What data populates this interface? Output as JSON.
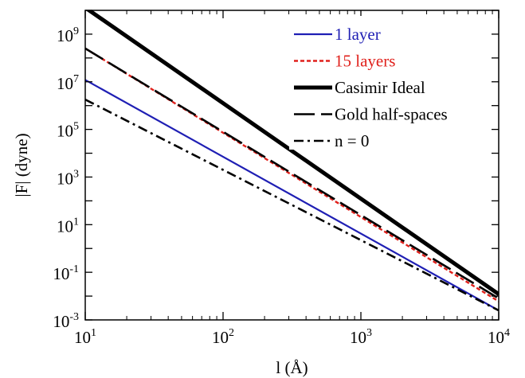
{
  "chart_data": {
    "type": "line",
    "x_scale": "log",
    "y_scale": "log",
    "xlim": [
      10,
      10000
    ],
    "ylim": [
      0.001,
      10000000000
    ],
    "xlabel": "l (Å)",
    "ylabel": "|F| (dyne)",
    "x_ticks": [
      {
        "base": "10",
        "exp": "1",
        "value": 10
      },
      {
        "base": "10",
        "exp": "2",
        "value": 100
      },
      {
        "base": "10",
        "exp": "3",
        "value": 1000
      },
      {
        "base": "10",
        "exp": "4",
        "value": 10000
      }
    ],
    "y_ticks": [
      {
        "base": "10",
        "exp": "9",
        "value": 1000000000.0
      },
      {
        "base": "10",
        "exp": "7",
        "value": 10000000.0
      },
      {
        "base": "10",
        "exp": "5",
        "value": 100000.0
      },
      {
        "base": "10",
        "exp": "3",
        "value": 1000.0
      },
      {
        "base": "10",
        "exp": "1",
        "value": 10.0
      },
      {
        "base": "10",
        "exp": "-1",
        "value": 0.1
      },
      {
        "base": "10",
        "exp": "-3",
        "value": 0.001
      }
    ],
    "legend_position": "top-right",
    "series": [
      {
        "name": "1 layer",
        "color": "#1f1fb4",
        "dash": "solid",
        "x": [
          10,
          10000
        ],
        "y": [
          12000000.0,
          0.0025
        ]
      },
      {
        "name": "15 layers",
        "color": "#e0201b",
        "dash": "dotted",
        "x": [
          10,
          10000
        ],
        "y": [
          250000000.0,
          0.006
        ]
      },
      {
        "name": "Casimir Ideal",
        "color": "#000000",
        "dash": "thick",
        "x": [
          10,
          10000
        ],
        "y": [
          13000000000.0,
          0.012
        ]
      },
      {
        "name": "Gold half-spaces",
        "color": "#000000",
        "dash": "longdash",
        "x": [
          10,
          10000
        ],
        "y": [
          250000000.0,
          0.008
        ]
      },
      {
        "name": "n = 0",
        "color": "#000000",
        "dash": "dashdot",
        "x": [
          10,
          10000
        ],
        "y": [
          1800000.0,
          0.0025
        ]
      }
    ]
  }
}
